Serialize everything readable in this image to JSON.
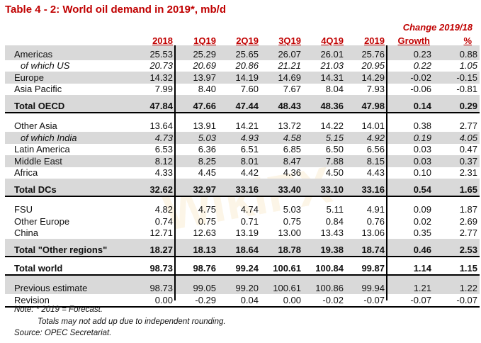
{
  "title": "Table 4 - 2: World oil demand in 2019*, mb/d",
  "change_header": "Change 2019/18",
  "columns": [
    "2018",
    "1Q19",
    "2Q19",
    "3Q19",
    "4Q19",
    "2019",
    "Growth",
    "%"
  ],
  "rows": [
    {
      "label": "Americas",
      "values": [
        "25.53",
        "25.29",
        "25.65",
        "26.07",
        "26.01",
        "25.76",
        "0.23",
        "0.88"
      ],
      "style": "normal",
      "shaded": true
    },
    {
      "label": "of which US",
      "values": [
        "20.73",
        "20.69",
        "20.86",
        "21.21",
        "21.03",
        "20.95",
        "0.22",
        "1.05"
      ],
      "style": "sub",
      "shaded": false
    },
    {
      "label": "Europe",
      "values": [
        "14.32",
        "13.97",
        "14.19",
        "14.69",
        "14.31",
        "14.29",
        "-0.02",
        "-0.15"
      ],
      "style": "normal",
      "shaded": true
    },
    {
      "label": "Asia Pacific",
      "values": [
        "7.99",
        "8.40",
        "7.60",
        "7.67",
        "8.04",
        "7.93",
        "-0.06",
        "-0.81"
      ],
      "style": "normal",
      "shaded": false
    },
    {
      "label": "Total OECD",
      "values": [
        "47.84",
        "47.66",
        "47.44",
        "48.43",
        "48.36",
        "47.98",
        "0.14",
        "0.29"
      ],
      "style": "total",
      "shaded": true
    },
    {
      "label": "Other Asia",
      "values": [
        "13.64",
        "13.91",
        "14.21",
        "13.72",
        "14.22",
        "14.01",
        "0.38",
        "2.77"
      ],
      "style": "normal",
      "shaded": false
    },
    {
      "label": "of which India",
      "values": [
        "4.73",
        "5.03",
        "4.93",
        "4.58",
        "5.15",
        "4.92",
        "0.19",
        "4.05"
      ],
      "style": "sub",
      "shaded": true
    },
    {
      "label": "Latin America",
      "values": [
        "6.53",
        "6.36",
        "6.51",
        "6.85",
        "6.50",
        "6.56",
        "0.03",
        "0.47"
      ],
      "style": "normal",
      "shaded": false
    },
    {
      "label": "Middle East",
      "values": [
        "8.12",
        "8.25",
        "8.01",
        "8.47",
        "7.88",
        "8.15",
        "0.03",
        "0.37"
      ],
      "style": "normal",
      "shaded": true
    },
    {
      "label": "Africa",
      "values": [
        "4.33",
        "4.45",
        "4.42",
        "4.36",
        "4.50",
        "4.43",
        "0.10",
        "2.31"
      ],
      "style": "normal",
      "shaded": false
    },
    {
      "label": "Total DCs",
      "values": [
        "32.62",
        "32.97",
        "33.16",
        "33.40",
        "33.10",
        "33.16",
        "0.54",
        "1.65"
      ],
      "style": "total",
      "shaded": true
    },
    {
      "label": "FSU",
      "values": [
        "4.82",
        "4.75",
        "4.74",
        "5.03",
        "5.11",
        "4.91",
        "0.09",
        "1.87"
      ],
      "style": "normal",
      "shaded": false
    },
    {
      "label": "Other Europe",
      "values": [
        "0.74",
        "0.75",
        "0.71",
        "0.75",
        "0.84",
        "0.76",
        "0.02",
        "2.69"
      ],
      "style": "normal",
      "shaded": false
    },
    {
      "label": "China",
      "values": [
        "12.71",
        "12.63",
        "13.19",
        "13.00",
        "13.43",
        "13.06",
        "0.35",
        "2.77"
      ],
      "style": "normal",
      "shaded": false
    },
    {
      "label": "Total \"Other regions\"",
      "values": [
        "18.27",
        "18.13",
        "18.64",
        "18.78",
        "19.38",
        "18.74",
        "0.46",
        "2.53"
      ],
      "style": "total",
      "shaded": true
    },
    {
      "label": "Total world",
      "values": [
        "98.73",
        "98.76",
        "99.24",
        "100.61",
        "100.84",
        "99.87",
        "1.14",
        "1.15"
      ],
      "style": "total",
      "shaded": false
    },
    {
      "label": "Previous estimate",
      "values": [
        "98.73",
        "99.05",
        "99.20",
        "100.61",
        "100.86",
        "99.94",
        "1.21",
        "1.22"
      ],
      "style": "normal",
      "shaded": true
    },
    {
      "label": "Revision",
      "values": [
        "0.00",
        "-0.29",
        "0.04",
        "0.00",
        "-0.02",
        "-0.07",
        "-0.07",
        "-0.07"
      ],
      "style": "normal",
      "shaded": false
    }
  ],
  "notes": [
    "Note: * 2019 = Forecast.",
    "Totals may not add up due to independent rounding.",
    "Source: OPEC Secretariat."
  ],
  "watermark": "WikiFX",
  "colors": {
    "accent": "#c00000",
    "shade": "#d9d9d9"
  }
}
